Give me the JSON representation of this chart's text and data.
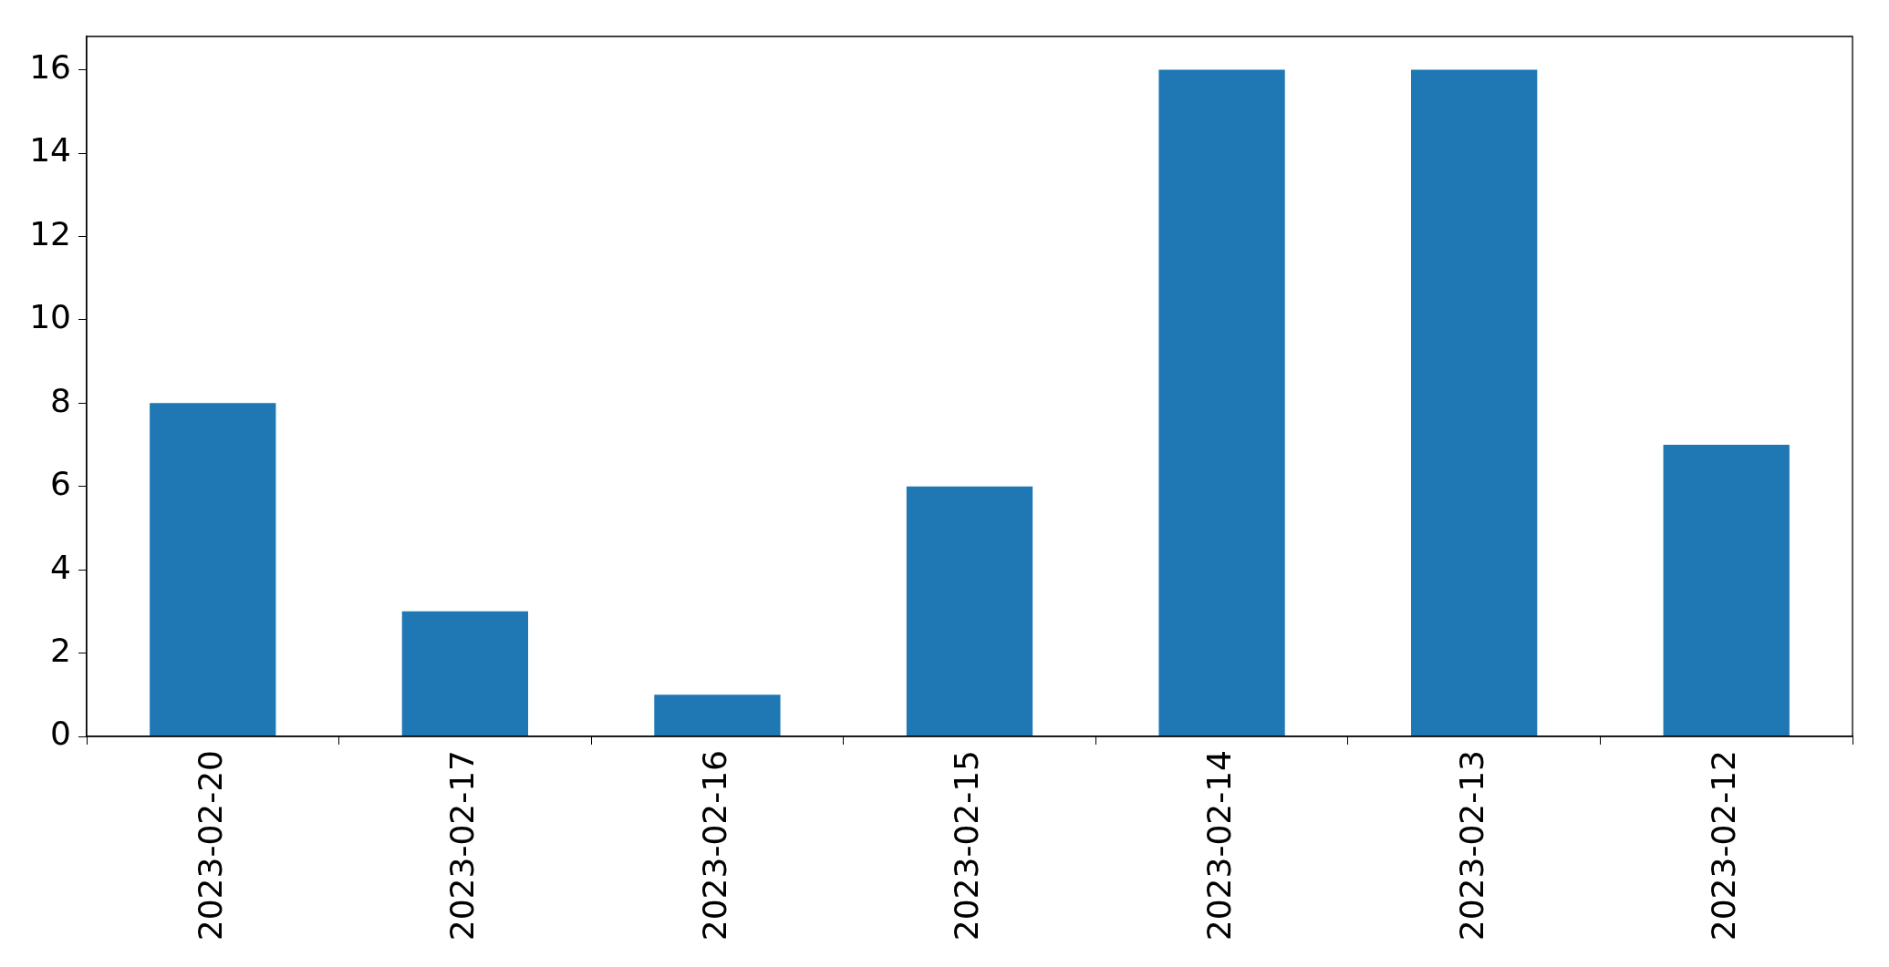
{
  "chart_data": {
    "type": "bar",
    "categories": [
      "2023-02-20",
      "2023-02-17",
      "2023-02-16",
      "2023-02-15",
      "2023-02-14",
      "2023-02-13",
      "2023-02-12"
    ],
    "values": [
      8,
      3,
      1,
      6,
      16,
      16,
      7
    ],
    "color": "#1f77b4",
    "ylim": [
      0,
      16.8
    ],
    "yticks": [
      0,
      2,
      4,
      6,
      8,
      10,
      12,
      14,
      16
    ],
    "grid": false
  }
}
